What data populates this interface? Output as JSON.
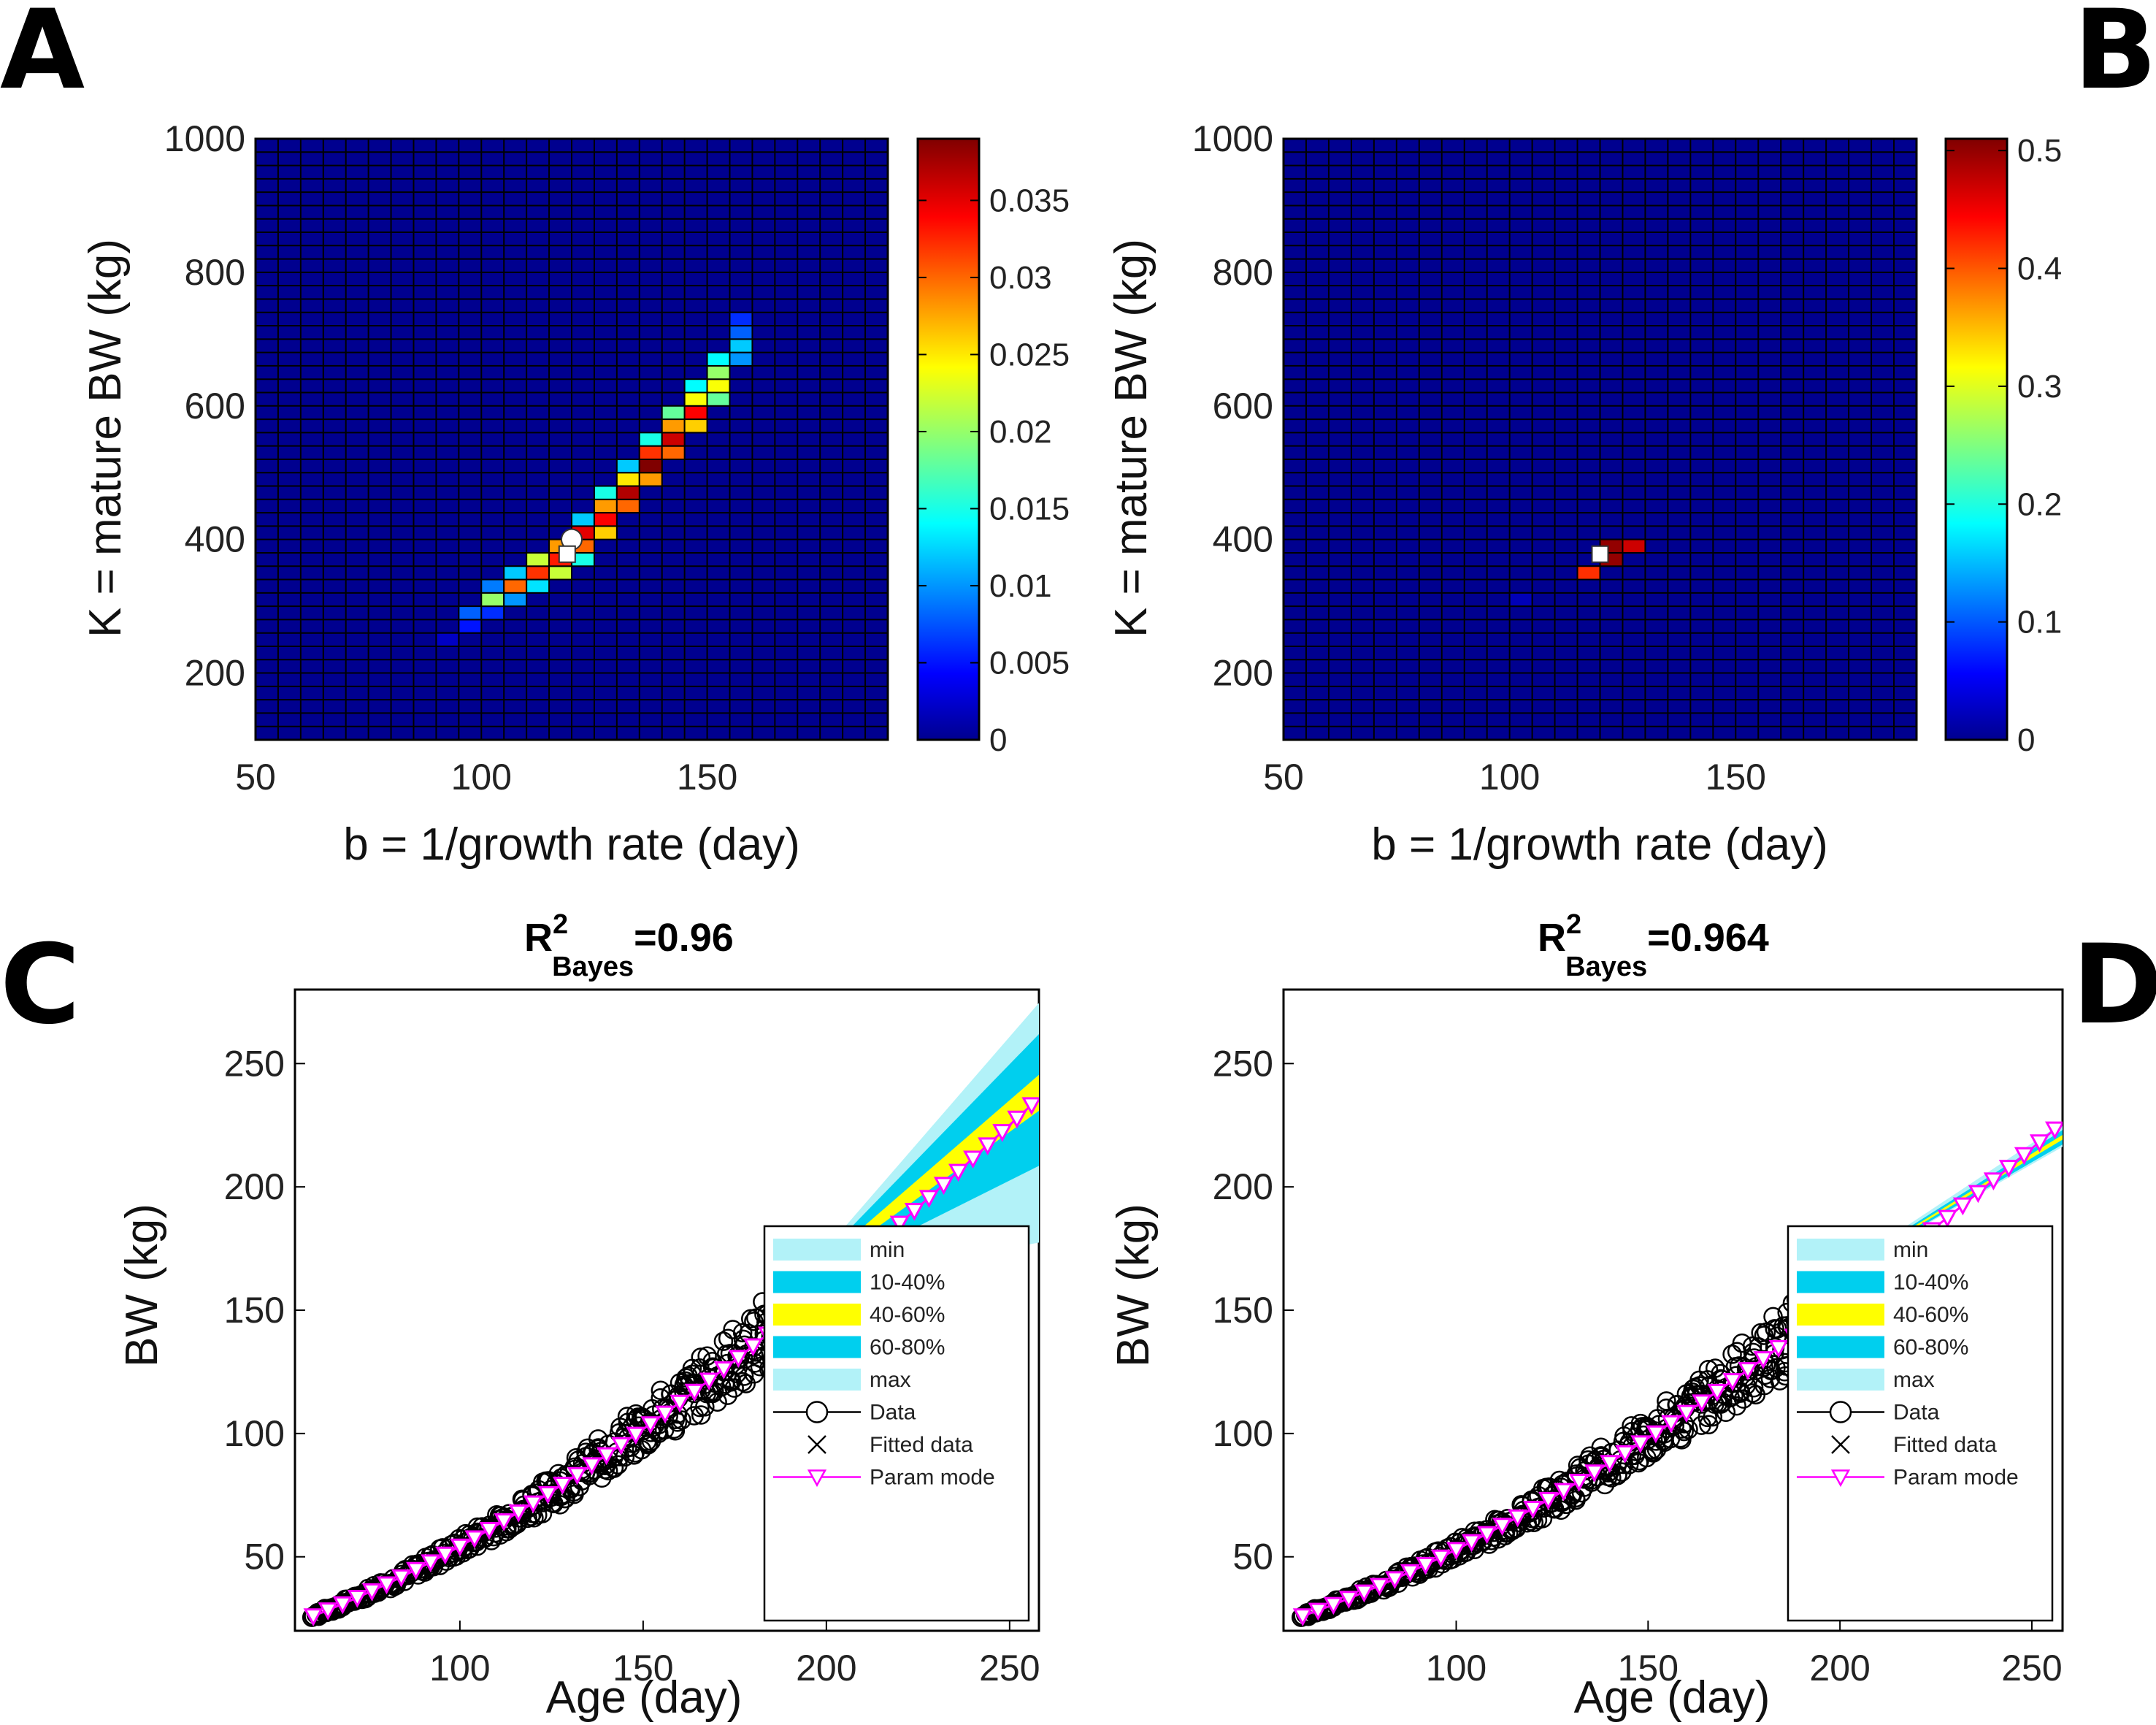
{
  "panel_labels": [
    "A",
    "B",
    "C",
    "D"
  ],
  "colors": {
    "heatmap_background": "#00008f",
    "light_band": "#b2f2f8",
    "mid_band": "#00cfee",
    "center_band": "#ffff00",
    "data_marker": "#000000",
    "param_mode": "#ff00ff"
  },
  "chart_data": [
    {
      "id": "A",
      "type": "heatmap",
      "title": "",
      "xlabel": "b = 1/growth rate (day)",
      "ylabel": "K = mature BW (kg)",
      "xlim": [
        50,
        190
      ],
      "ylim": [
        100,
        1000
      ],
      "xticks": [
        50,
        100,
        150
      ],
      "yticks": [
        200,
        400,
        600,
        800,
        1000
      ],
      "grid": {
        "x_step": 5,
        "y_step": 20
      },
      "colorbar": {
        "range": [
          0,
          0.039
        ],
        "ticks": [
          0,
          0.005,
          0.01,
          0.015,
          0.02,
          0.025,
          0.03,
          0.035
        ],
        "tick_labels": [
          "0",
          "0.005",
          "0.01",
          "0.015",
          "0.02",
          "0.025",
          "0.03",
          "0.035"
        ]
      },
      "cells": [
        [
          90,
          240,
          0.002
        ],
        [
          95,
          260,
          0.005
        ],
        [
          95,
          280,
          0.008
        ],
        [
          100,
          280,
          0.006
        ],
        [
          100,
          300,
          0.02
        ],
        [
          100,
          320,
          0.009
        ],
        [
          105,
          300,
          0.01
        ],
        [
          105,
          320,
          0.03
        ],
        [
          105,
          340,
          0.012
        ],
        [
          110,
          320,
          0.013
        ],
        [
          110,
          340,
          0.032
        ],
        [
          110,
          360,
          0.022
        ],
        [
          115,
          340,
          0.022
        ],
        [
          115,
          360,
          0.033
        ],
        [
          115,
          380,
          0.028
        ],
        [
          120,
          360,
          0.015
        ],
        [
          120,
          380,
          0.03
        ],
        [
          120,
          400,
          0.035
        ],
        [
          120,
          420,
          0.012
        ],
        [
          125,
          400,
          0.026
        ],
        [
          125,
          420,
          0.034
        ],
        [
          125,
          440,
          0.028
        ],
        [
          125,
          460,
          0.015
        ],
        [
          130,
          440,
          0.03
        ],
        [
          130,
          460,
          0.037
        ],
        [
          130,
          480,
          0.025
        ],
        [
          130,
          500,
          0.012
        ],
        [
          135,
          480,
          0.028
        ],
        [
          135,
          500,
          0.039
        ],
        [
          135,
          520,
          0.032
        ],
        [
          135,
          540,
          0.015
        ],
        [
          140,
          520,
          0.03
        ],
        [
          140,
          540,
          0.036
        ],
        [
          140,
          560,
          0.028
        ],
        [
          140,
          580,
          0.018
        ],
        [
          145,
          560,
          0.026
        ],
        [
          145,
          580,
          0.034
        ],
        [
          145,
          600,
          0.024
        ],
        [
          145,
          620,
          0.014
        ],
        [
          150,
          600,
          0.018
        ],
        [
          150,
          620,
          0.024
        ],
        [
          150,
          640,
          0.02
        ],
        [
          150,
          660,
          0.014
        ],
        [
          155,
          660,
          0.01
        ],
        [
          155,
          680,
          0.012
        ],
        [
          155,
          700,
          0.008
        ],
        [
          155,
          720,
          0.006
        ]
      ],
      "markers": [
        {
          "kind": "circle",
          "x": 120,
          "y": 400,
          "color": "#ffffff"
        },
        {
          "kind": "square",
          "x": 119,
          "y": 378,
          "color": "#ffffff"
        }
      ]
    },
    {
      "id": "B",
      "type": "heatmap",
      "title": "",
      "xlabel": "b = 1/growth rate (day)",
      "ylabel": "K = mature BW (kg)",
      "xlim": [
        50,
        190
      ],
      "ylim": [
        100,
        1000
      ],
      "xticks": [
        50,
        100,
        150
      ],
      "yticks": [
        200,
        400,
        600,
        800,
        1000
      ],
      "grid": {
        "x_step": 5,
        "y_step": 20
      },
      "colorbar": {
        "range": [
          0,
          0.51
        ],
        "ticks": [
          0,
          0.1,
          0.2,
          0.3,
          0.4,
          0.5
        ],
        "tick_labels": [
          "0",
          "0.1",
          "0.2",
          "0.3",
          "0.4",
          "0.5"
        ]
      },
      "cells": [
        [
          115,
          340,
          0.42
        ],
        [
          120,
          360,
          0.5
        ],
        [
          120,
          380,
          0.5
        ],
        [
          125,
          380,
          0.47
        ],
        [
          100,
          300,
          0.02
        ]
      ],
      "markers": [
        {
          "kind": "square",
          "x": 120,
          "y": 378,
          "color": "#ffffff"
        }
      ]
    },
    {
      "id": "C",
      "type": "line",
      "title": "R",
      "title_sup": "2",
      "title_sub": "Bayes",
      "title_value": "=0.96",
      "xlabel": "Age (day)",
      "ylabel": "BW (kg)",
      "xlim": [
        55,
        258
      ],
      "ylim": [
        20,
        280
      ],
      "xticks": [
        100,
        150,
        200,
        250
      ],
      "yticks": [
        50,
        100,
        150,
        200,
        250
      ],
      "data_range": {
        "age": [
          60,
          190
        ]
      },
      "projection": {
        "start_age": 190,
        "end_age": 258,
        "start_bw": 158,
        "end_bw": {
          "max": 278,
          "p80": 265,
          "p60": 248,
          "mode": 236,
          "p40": 233,
          "p10": 210,
          "min": 178
        }
      },
      "param_mode_curve": {
        "age": [
          60,
          258
        ],
        "bw": [
          26,
          236
        ],
        "step": 4
      },
      "legend": {
        "placement": "bottom-right",
        "entries": [
          "min",
          "10-40%",
          "40-60%",
          "60-80%",
          "max",
          "Data",
          "Fitted data",
          "Param mode"
        ]
      }
    },
    {
      "id": "D",
      "type": "line",
      "title": "R",
      "title_sup": "2",
      "title_sub": "Bayes",
      "title_value": "=0.964",
      "xlabel": "Age (day)",
      "ylabel": "BW (kg)",
      "xlim": [
        55,
        258
      ],
      "ylim": [
        20,
        280
      ],
      "xticks": [
        100,
        150,
        200,
        250
      ],
      "yticks": [
        50,
        100,
        150,
        200,
        250
      ],
      "data_range": {
        "age": [
          60,
          190
        ]
      },
      "projection": {
        "start_age": 190,
        "end_age": 258,
        "start_bw": 156,
        "end_bw": {
          "max": 228,
          "p80": 225,
          "p60": 223,
          "mode": 225,
          "p40": 221,
          "p10": 219,
          "min": 218
        }
      },
      "param_mode_curve": {
        "age": [
          60,
          258
        ],
        "bw": [
          26,
          226
        ],
        "step": 4
      },
      "legend": {
        "placement": "bottom-right",
        "entries": [
          "min",
          "10-40%",
          "40-60%",
          "60-80%",
          "max",
          "Data",
          "Fitted data",
          "Param mode"
        ]
      }
    }
  ]
}
